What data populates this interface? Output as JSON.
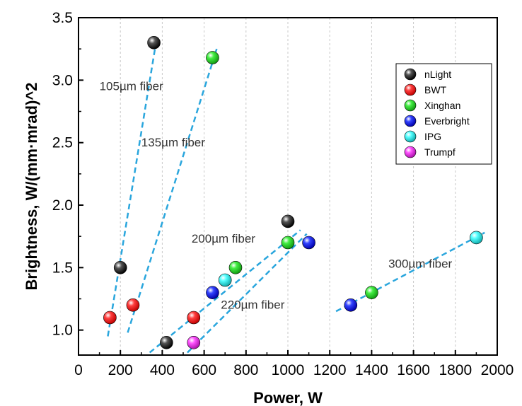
{
  "chart_data": {
    "type": "scatter",
    "xlabel": "Power, W",
    "ylabel": "Brightness, W/(mm·mrad)^2",
    "xlim": [
      0,
      2000
    ],
    "ylim": [
      0.8,
      3.5
    ],
    "x_ticks": [
      0,
      200,
      400,
      600,
      800,
      1000,
      1200,
      1400,
      1600,
      1800,
      2000
    ],
    "x_tick_labels": [
      "0",
      "200",
      "400",
      "600",
      "800",
      "1000",
      "1200",
      "1400",
      "1600",
      "1800",
      "2000"
    ],
    "y_ticks": [
      1.0,
      1.5,
      2.0,
      2.5,
      3.0,
      3.5
    ],
    "y_tick_labels": [
      "1.0",
      "1.5",
      "2.0",
      "2.5",
      "3.0",
      "3.5"
    ],
    "grid": "vertical dashed",
    "legend_position": "top-right",
    "series": [
      {
        "name": "nLight",
        "color": "#000000",
        "points": [
          [
            360,
            3.3
          ],
          [
            200,
            1.5
          ],
          [
            1000,
            1.87
          ],
          [
            420,
            0.9
          ]
        ]
      },
      {
        "name": "BWT",
        "color": "#ff0000",
        "points": [
          [
            150,
            1.1
          ],
          [
            260,
            1.2
          ],
          [
            550,
            1.1
          ]
        ]
      },
      {
        "name": "Xinghan",
        "color": "#22dd22",
        "points": [
          [
            640,
            3.18
          ],
          [
            750,
            1.5
          ],
          [
            1000,
            1.7
          ],
          [
            1400,
            1.3
          ]
        ]
      },
      {
        "name": "Everbright",
        "color": "#1a1aee",
        "points": [
          [
            640,
            1.3
          ],
          [
            1100,
            1.7
          ],
          [
            1300,
            1.2
          ]
        ]
      },
      {
        "name": "IPG",
        "color": "#22eeee",
        "points": [
          [
            700,
            1.4
          ],
          [
            1900,
            1.74
          ]
        ]
      },
      {
        "name": "Trumpf",
        "color": "#ff22ff",
        "points": [
          [
            550,
            0.9
          ]
        ]
      }
    ],
    "trend_lines": [
      {
        "label": "105µm fiber",
        "from": [
          140,
          0.95
        ],
        "to": [
          370,
          3.3
        ],
        "label_at": [
          100,
          2.92
        ]
      },
      {
        "label": "135µm fiber",
        "from": [
          235,
          0.98
        ],
        "to": [
          660,
          3.25
        ],
        "label_at": [
          300,
          2.47
        ]
      },
      {
        "label": "200µm fiber",
        "from": [
          340,
          0.82
        ],
        "to": [
          1060,
          1.8
        ],
        "label_at": [
          540,
          1.7
        ]
      },
      {
        "label": "220µm fiber",
        "from": [
          520,
          0.82
        ],
        "to": [
          1090,
          1.77
        ],
        "label_at": [
          680,
          1.17
        ]
      },
      {
        "label": "300µm fiber",
        "from": [
          1230,
          1.15
        ],
        "to": [
          1940,
          1.78
        ],
        "label_at": [
          1480,
          1.5
        ]
      }
    ]
  }
}
